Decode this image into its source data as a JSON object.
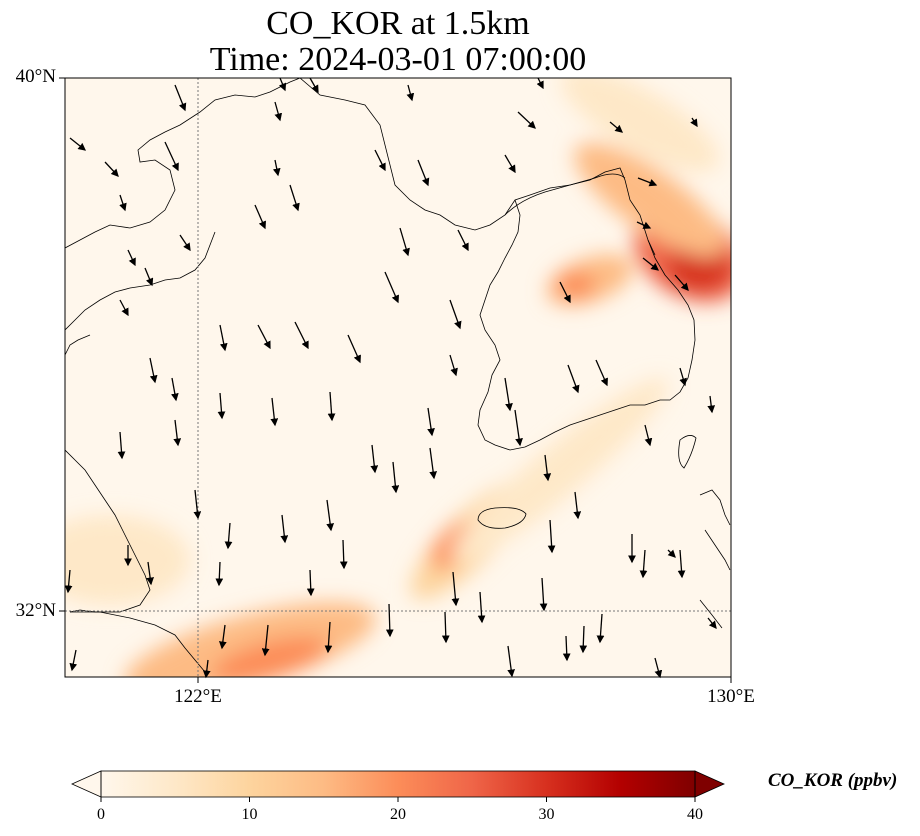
{
  "title": {
    "line1": "CO_KOR at 1.5km",
    "line2": "Time: 2024-03-01 07:00:00"
  },
  "axes": {
    "lat_labels": [
      "40°N",
      "32°N"
    ],
    "lon_labels": [
      "122°E",
      "130°E"
    ]
  },
  "colorbar": {
    "label": "CO_KOR (ppbv)",
    "ticks": [
      "0",
      "10",
      "20",
      "30",
      "40"
    ],
    "colormap": "OrRd",
    "colors": [
      "#fff7ec",
      "#fee8c8",
      "#fdd49e",
      "#fdbb84",
      "#fc8d59",
      "#ef6548",
      "#d7301f",
      "#b30000",
      "#7f0000"
    ],
    "extend": "both"
  },
  "map": {
    "extent": {
      "lon_min": 120,
      "lon_max": 130,
      "lat_min": 31,
      "lat_max": 40
    },
    "gridlines": {
      "lon": [
        122
      ],
      "lat": [
        32
      ],
      "style": "dotted"
    },
    "wind_arrows_color": "#000000"
  }
}
